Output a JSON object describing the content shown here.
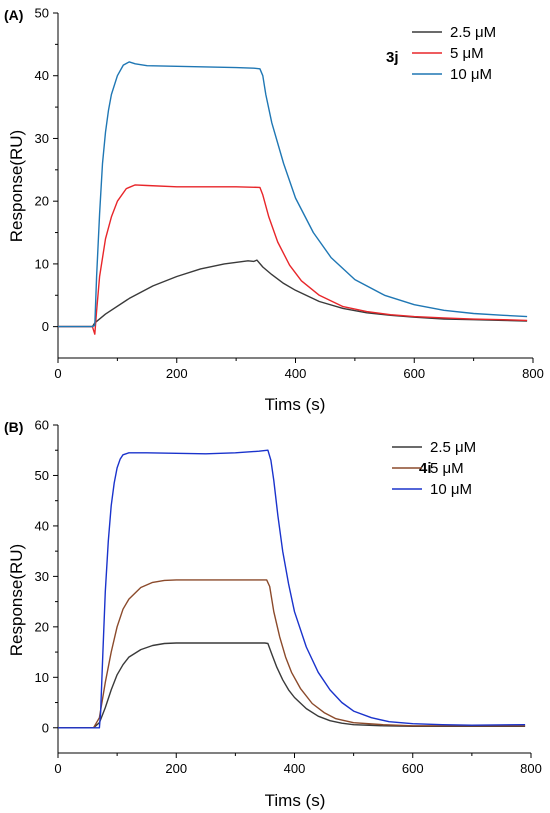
{
  "chart_data": [
    {
      "type": "line",
      "panel_label": "(A)",
      "compound": "3j",
      "xlabel": "Tims (s)",
      "ylabel": "Response(RU)",
      "xlim": [
        0,
        800
      ],
      "ylim": [
        -5,
        50
      ],
      "xticks": [
        0,
        200,
        400,
        600,
        800
      ],
      "yticks": [
        0,
        10,
        20,
        30,
        40,
        50
      ],
      "grid": false,
      "legend_position": "top-right",
      "series": [
        {
          "name": "2.5 μM",
          "color": "#3a3a3a",
          "points": [
            [
              0,
              0
            ],
            [
              58,
              0
            ],
            [
              62,
              0.6
            ],
            [
              80,
              2
            ],
            [
              120,
              4.5
            ],
            [
              160,
              6.5
            ],
            [
              200,
              8
            ],
            [
              240,
              9.2
            ],
            [
              280,
              10
            ],
            [
              320,
              10.5
            ],
            [
              330,
              10.4
            ],
            [
              335,
              10.6
            ],
            [
              345,
              9.5
            ],
            [
              360,
              8.3
            ],
            [
              380,
              6.9
            ],
            [
              400,
              5.8
            ],
            [
              440,
              4
            ],
            [
              480,
              2.9
            ],
            [
              520,
              2.2
            ],
            [
              560,
              1.8
            ],
            [
              600,
              1.5
            ],
            [
              650,
              1.2
            ],
            [
              700,
              1.1
            ],
            [
              750,
              1
            ],
            [
              790,
              0.9
            ]
          ]
        },
        {
          "name": "5 μM",
          "color": "#e8262a",
          "points": [
            [
              0,
              0
            ],
            [
              58,
              0
            ],
            [
              62,
              -1.2
            ],
            [
              65,
              2.5
            ],
            [
              70,
              8
            ],
            [
              80,
              14
            ],
            [
              90,
              17.5
            ],
            [
              100,
              20
            ],
            [
              115,
              22
            ],
            [
              130,
              22.6
            ],
            [
              150,
              22.5
            ],
            [
              200,
              22.3
            ],
            [
              250,
              22.3
            ],
            [
              300,
              22.3
            ],
            [
              340,
              22.2
            ],
            [
              345,
              21
            ],
            [
              355,
              17.5
            ],
            [
              370,
              13.5
            ],
            [
              390,
              9.8
            ],
            [
              410,
              7.3
            ],
            [
              440,
              5
            ],
            [
              480,
              3.2
            ],
            [
              520,
              2.4
            ],
            [
              560,
              1.9
            ],
            [
              600,
              1.6
            ],
            [
              650,
              1.4
            ],
            [
              700,
              1.2
            ],
            [
              750,
              1.1
            ],
            [
              790,
              1
            ]
          ]
        },
        {
          "name": "10 μM",
          "color": "#1f77b4",
          "points": [
            [
              0,
              0
            ],
            [
              58,
              0
            ],
            [
              62,
              0.2
            ],
            [
              65,
              8
            ],
            [
              70,
              18
            ],
            [
              75,
              26
            ],
            [
              80,
              31
            ],
            [
              85,
              34.5
            ],
            [
              90,
              37
            ],
            [
              100,
              40
            ],
            [
              110,
              41.7
            ],
            [
              120,
              42.2
            ],
            [
              130,
              41.9
            ],
            [
              150,
              41.6
            ],
            [
              200,
              41.5
            ],
            [
              250,
              41.4
            ],
            [
              300,
              41.3
            ],
            [
              330,
              41.2
            ],
            [
              340,
              41.1
            ],
            [
              345,
              40
            ],
            [
              350,
              37
            ],
            [
              360,
              32.5
            ],
            [
              380,
              26
            ],
            [
              400,
              20.5
            ],
            [
              430,
              15
            ],
            [
              460,
              11
            ],
            [
              500,
              7.5
            ],
            [
              550,
              5
            ],
            [
              600,
              3.5
            ],
            [
              650,
              2.6
            ],
            [
              700,
              2.1
            ],
            [
              750,
              1.8
            ],
            [
              790,
              1.6
            ]
          ]
        }
      ]
    },
    {
      "type": "line",
      "panel_label": "(B)",
      "compound": "4i",
      "xlabel": "Tims (s)",
      "ylabel": "Response(RU)",
      "xlim": [
        0,
        800
      ],
      "ylim": [
        -5,
        60
      ],
      "xticks": [
        0,
        200,
        400,
        600,
        800
      ],
      "yticks": [
        0,
        10,
        20,
        30,
        40,
        50,
        60
      ],
      "grid": false,
      "legend_position": "top-right",
      "series": [
        {
          "name": "2.5 μM",
          "color": "#3a3a3a",
          "points": [
            [
              0,
              0
            ],
            [
              60,
              0
            ],
            [
              70,
              1
            ],
            [
              80,
              4
            ],
            [
              90,
              7.5
            ],
            [
              100,
              10.5
            ],
            [
              110,
              12.5
            ],
            [
              120,
              14
            ],
            [
              140,
              15.5
            ],
            [
              160,
              16.3
            ],
            [
              180,
              16.7
            ],
            [
              200,
              16.8
            ],
            [
              250,
              16.8
            ],
            [
              300,
              16.8
            ],
            [
              350,
              16.8
            ],
            [
              355,
              16.7
            ],
            [
              362,
              14.5
            ],
            [
              370,
              12
            ],
            [
              380,
              9.5
            ],
            [
              390,
              7.5
            ],
            [
              400,
              6
            ],
            [
              420,
              3.8
            ],
            [
              440,
              2.3
            ],
            [
              460,
              1.4
            ],
            [
              480,
              0.9
            ],
            [
              500,
              0.6
            ],
            [
              550,
              0.4
            ],
            [
              600,
              0.3
            ],
            [
              700,
              0.3
            ],
            [
              790,
              0.3
            ]
          ]
        },
        {
          "name": "5 μM",
          "color": "#8b4a2b",
          "points": [
            [
              0,
              0
            ],
            [
              60,
              0
            ],
            [
              70,
              2
            ],
            [
              80,
              9
            ],
            [
              90,
              15
            ],
            [
              100,
              20
            ],
            [
              110,
              23.5
            ],
            [
              120,
              25.5
            ],
            [
              140,
              27.8
            ],
            [
              160,
              28.8
            ],
            [
              180,
              29.2
            ],
            [
              200,
              29.3
            ],
            [
              250,
              29.3
            ],
            [
              300,
              29.3
            ],
            [
              353,
              29.3
            ],
            [
              358,
              28
            ],
            [
              365,
              23
            ],
            [
              375,
              18
            ],
            [
              385,
              14
            ],
            [
              395,
              11
            ],
            [
              410,
              7.8
            ],
            [
              430,
              4.8
            ],
            [
              450,
              3
            ],
            [
              470,
              1.8
            ],
            [
              500,
              1
            ],
            [
              550,
              0.6
            ],
            [
              600,
              0.4
            ],
            [
              700,
              0.4
            ],
            [
              790,
              0.4
            ]
          ]
        },
        {
          "name": "10 μM",
          "color": "#1a33cc",
          "points": [
            [
              0,
              0
            ],
            [
              70,
              0
            ],
            [
              72,
              3
            ],
            [
              76,
              15
            ],
            [
              80,
              27
            ],
            [
              85,
              37
            ],
            [
              90,
              44
            ],
            [
              95,
              48.5
            ],
            [
              100,
              51.5
            ],
            [
              105,
              53.2
            ],
            [
              110,
              54.1
            ],
            [
              120,
              54.5
            ],
            [
              150,
              54.5
            ],
            [
              200,
              54.4
            ],
            [
              250,
              54.3
            ],
            [
              300,
              54.5
            ],
            [
              340,
              54.8
            ],
            [
              355,
              55
            ],
            [
              360,
              53
            ],
            [
              365,
              49
            ],
            [
              372,
              42
            ],
            [
              380,
              35
            ],
            [
              390,
              28.5
            ],
            [
              400,
              23
            ],
            [
              420,
              16
            ],
            [
              440,
              11
            ],
            [
              460,
              7.5
            ],
            [
              480,
              5
            ],
            [
              500,
              3.3
            ],
            [
              530,
              2
            ],
            [
              560,
              1.2
            ],
            [
              600,
              0.8
            ],
            [
              650,
              0.6
            ],
            [
              700,
              0.5
            ],
            [
              790,
              0.6
            ]
          ]
        }
      ]
    }
  ]
}
